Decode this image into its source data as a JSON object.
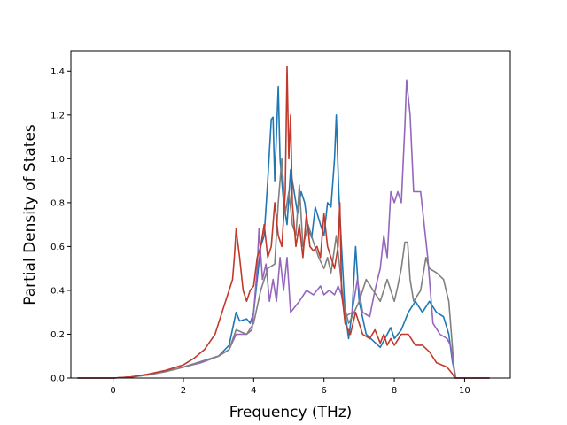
{
  "chart_data": {
    "type": "line",
    "title": "",
    "xlabel": "Frequency (THz)",
    "ylabel": "Partial Density of States",
    "xlim": [
      -1.2,
      11.3
    ],
    "ylim": [
      0.0,
      1.49
    ],
    "xticks": [
      0,
      2,
      4,
      6,
      8,
      10
    ],
    "yticks": [
      0.0,
      0.2,
      0.4,
      0.6,
      0.8,
      1.0,
      1.2,
      1.4
    ],
    "xtick_labels": [
      "0",
      "2",
      "4",
      "6",
      "8",
      "10"
    ],
    "ytick_labels": [
      "0.0",
      "0.2",
      "0.4",
      "0.6",
      "0.8",
      "1.0",
      "1.2",
      "1.4"
    ],
    "grid": false,
    "legend": "none",
    "series": [
      {
        "color": "#1f77b4",
        "points": [
          [
            -1.0,
            0
          ],
          [
            0,
            0
          ],
          [
            0.5,
            0.005
          ],
          [
            1.0,
            0.015
          ],
          [
            1.5,
            0.03
          ],
          [
            2.0,
            0.05
          ],
          [
            2.5,
            0.075
          ],
          [
            3.0,
            0.1
          ],
          [
            3.3,
            0.15
          ],
          [
            3.5,
            0.3
          ],
          [
            3.6,
            0.26
          ],
          [
            3.8,
            0.27
          ],
          [
            3.9,
            0.25
          ],
          [
            4.0,
            0.3
          ],
          [
            4.1,
            0.45
          ],
          [
            4.2,
            0.6
          ],
          [
            4.3,
            0.65
          ],
          [
            4.4,
            0.9
          ],
          [
            4.5,
            1.18
          ],
          [
            4.55,
            1.19
          ],
          [
            4.6,
            0.9
          ],
          [
            4.7,
            1.33
          ],
          [
            4.75,
            1.0
          ],
          [
            4.85,
            0.8
          ],
          [
            4.95,
            0.7
          ],
          [
            5.05,
            0.95
          ],
          [
            5.15,
            0.85
          ],
          [
            5.25,
            0.75
          ],
          [
            5.35,
            0.85
          ],
          [
            5.45,
            0.8
          ],
          [
            5.55,
            0.68
          ],
          [
            5.65,
            0.64
          ],
          [
            5.75,
            0.78
          ],
          [
            5.9,
            0.7
          ],
          [
            6.0,
            0.65
          ],
          [
            6.1,
            0.8
          ],
          [
            6.2,
            0.78
          ],
          [
            6.3,
            1.0
          ],
          [
            6.35,
            1.2
          ],
          [
            6.42,
            0.85
          ],
          [
            6.5,
            0.6
          ],
          [
            6.6,
            0.3
          ],
          [
            6.7,
            0.18
          ],
          [
            6.8,
            0.3
          ],
          [
            6.9,
            0.6
          ],
          [
            7.0,
            0.35
          ],
          [
            7.2,
            0.2
          ],
          [
            7.4,
            0.17
          ],
          [
            7.6,
            0.14
          ],
          [
            7.8,
            0.2
          ],
          [
            7.9,
            0.23
          ],
          [
            8.0,
            0.18
          ],
          [
            8.2,
            0.22
          ],
          [
            8.4,
            0.3
          ],
          [
            8.6,
            0.35
          ],
          [
            8.8,
            0.3
          ],
          [
            9.0,
            0.35
          ],
          [
            9.2,
            0.3
          ],
          [
            9.4,
            0.28
          ],
          [
            9.55,
            0.2
          ],
          [
            9.65,
            0.08
          ],
          [
            9.75,
            0.0
          ],
          [
            10.7,
            0.0
          ]
        ]
      },
      {
        "color": "#9467bd",
        "points": [
          [
            -1.0,
            0
          ],
          [
            0,
            0
          ],
          [
            0.5,
            0.005
          ],
          [
            1.0,
            0.015
          ],
          [
            1.5,
            0.03
          ],
          [
            2.0,
            0.05
          ],
          [
            2.5,
            0.07
          ],
          [
            3.0,
            0.1
          ],
          [
            3.3,
            0.13
          ],
          [
            3.5,
            0.2
          ],
          [
            3.8,
            0.2
          ],
          [
            3.95,
            0.22
          ],
          [
            4.0,
            0.3
          ],
          [
            4.1,
            0.5
          ],
          [
            4.15,
            0.68
          ],
          [
            4.25,
            0.45
          ],
          [
            4.35,
            0.52
          ],
          [
            4.45,
            0.35
          ],
          [
            4.55,
            0.45
          ],
          [
            4.65,
            0.35
          ],
          [
            4.75,
            0.55
          ],
          [
            4.85,
            0.4
          ],
          [
            4.95,
            0.55
          ],
          [
            5.05,
            0.3
          ],
          [
            5.15,
            0.32
          ],
          [
            5.3,
            0.35
          ],
          [
            5.5,
            0.4
          ],
          [
            5.7,
            0.38
          ],
          [
            5.9,
            0.42
          ],
          [
            6.0,
            0.38
          ],
          [
            6.15,
            0.4
          ],
          [
            6.3,
            0.38
          ],
          [
            6.4,
            0.42
          ],
          [
            6.5,
            0.38
          ],
          [
            6.6,
            0.28
          ],
          [
            6.8,
            0.3
          ],
          [
            6.95,
            0.45
          ],
          [
            7.1,
            0.3
          ],
          [
            7.3,
            0.28
          ],
          [
            7.45,
            0.4
          ],
          [
            7.6,
            0.5
          ],
          [
            7.7,
            0.65
          ],
          [
            7.8,
            0.55
          ],
          [
            7.9,
            0.85
          ],
          [
            8.0,
            0.8
          ],
          [
            8.1,
            0.85
          ],
          [
            8.2,
            0.8
          ],
          [
            8.3,
            1.15
          ],
          [
            8.35,
            1.36
          ],
          [
            8.45,
            1.2
          ],
          [
            8.55,
            0.85
          ],
          [
            8.75,
            0.85
          ],
          [
            8.85,
            0.7
          ],
          [
            8.95,
            0.55
          ],
          [
            9.1,
            0.25
          ],
          [
            9.3,
            0.2
          ],
          [
            9.5,
            0.18
          ],
          [
            9.6,
            0.15
          ],
          [
            9.7,
            0.05
          ],
          [
            9.75,
            0.0
          ],
          [
            10.7,
            0.0
          ]
        ]
      },
      {
        "color": "#808080",
        "points": [
          [
            -1.0,
            0
          ],
          [
            0,
            0
          ],
          [
            0.5,
            0.005
          ],
          [
            1.0,
            0.015
          ],
          [
            1.5,
            0.03
          ],
          [
            2.0,
            0.05
          ],
          [
            2.5,
            0.075
          ],
          [
            3.0,
            0.1
          ],
          [
            3.3,
            0.13
          ],
          [
            3.5,
            0.22
          ],
          [
            3.8,
            0.2
          ],
          [
            4.0,
            0.25
          ],
          [
            4.2,
            0.4
          ],
          [
            4.4,
            0.5
          ],
          [
            4.6,
            0.52
          ],
          [
            4.7,
            0.8
          ],
          [
            4.75,
            0.9
          ],
          [
            4.8,
            1.0
          ],
          [
            4.9,
            0.75
          ],
          [
            5.0,
            0.85
          ],
          [
            5.1,
            0.7
          ],
          [
            5.2,
            0.65
          ],
          [
            5.3,
            0.88
          ],
          [
            5.4,
            0.6
          ],
          [
            5.55,
            0.7
          ],
          [
            5.7,
            0.62
          ],
          [
            5.85,
            0.55
          ],
          [
            6.0,
            0.5
          ],
          [
            6.1,
            0.55
          ],
          [
            6.2,
            0.48
          ],
          [
            6.35,
            0.65
          ],
          [
            6.45,
            0.5
          ],
          [
            6.55,
            0.35
          ],
          [
            6.7,
            0.25
          ],
          [
            6.8,
            0.28
          ],
          [
            7.0,
            0.35
          ],
          [
            7.2,
            0.45
          ],
          [
            7.4,
            0.4
          ],
          [
            7.6,
            0.35
          ],
          [
            7.8,
            0.45
          ],
          [
            8.0,
            0.35
          ],
          [
            8.1,
            0.42
          ],
          [
            8.2,
            0.5
          ],
          [
            8.3,
            0.62
          ],
          [
            8.38,
            0.62
          ],
          [
            8.45,
            0.45
          ],
          [
            8.55,
            0.35
          ],
          [
            8.75,
            0.4
          ],
          [
            8.9,
            0.55
          ],
          [
            9.0,
            0.5
          ],
          [
            9.2,
            0.48
          ],
          [
            9.4,
            0.45
          ],
          [
            9.55,
            0.35
          ],
          [
            9.65,
            0.15
          ],
          [
            9.72,
            0.0
          ],
          [
            10.7,
            0.0
          ]
        ]
      },
      {
        "color": "#c0392b",
        "points": [
          [
            -1.0,
            0
          ],
          [
            0,
            0
          ],
          [
            0.5,
            0.005
          ],
          [
            1.0,
            0.018
          ],
          [
            1.5,
            0.035
          ],
          [
            2.0,
            0.06
          ],
          [
            2.3,
            0.09
          ],
          [
            2.6,
            0.13
          ],
          [
            2.9,
            0.2
          ],
          [
            3.1,
            0.3
          ],
          [
            3.3,
            0.4
          ],
          [
            3.4,
            0.45
          ],
          [
            3.45,
            0.55
          ],
          [
            3.5,
            0.68
          ],
          [
            3.6,
            0.55
          ],
          [
            3.7,
            0.4
          ],
          [
            3.8,
            0.35
          ],
          [
            3.9,
            0.4
          ],
          [
            4.0,
            0.42
          ],
          [
            4.1,
            0.55
          ],
          [
            4.2,
            0.6
          ],
          [
            4.3,
            0.7
          ],
          [
            4.4,
            0.55
          ],
          [
            4.5,
            0.6
          ],
          [
            4.6,
            0.8
          ],
          [
            4.7,
            0.65
          ],
          [
            4.8,
            0.6
          ],
          [
            4.9,
            0.85
          ],
          [
            4.95,
            1.42
          ],
          [
            5.0,
            1.0
          ],
          [
            5.05,
            1.2
          ],
          [
            5.1,
            0.8
          ],
          [
            5.2,
            0.6
          ],
          [
            5.3,
            0.7
          ],
          [
            5.4,
            0.55
          ],
          [
            5.5,
            0.75
          ],
          [
            5.6,
            0.6
          ],
          [
            5.7,
            0.58
          ],
          [
            5.8,
            0.6
          ],
          [
            5.9,
            0.55
          ],
          [
            6.0,
            0.75
          ],
          [
            6.1,
            0.6
          ],
          [
            6.2,
            0.55
          ],
          [
            6.3,
            0.5
          ],
          [
            6.4,
            0.6
          ],
          [
            6.45,
            0.8
          ],
          [
            6.5,
            0.4
          ],
          [
            6.6,
            0.25
          ],
          [
            6.75,
            0.2
          ],
          [
            6.9,
            0.3
          ],
          [
            7.1,
            0.2
          ],
          [
            7.3,
            0.18
          ],
          [
            7.45,
            0.22
          ],
          [
            7.6,
            0.16
          ],
          [
            7.7,
            0.2
          ],
          [
            7.8,
            0.15
          ],
          [
            7.9,
            0.18
          ],
          [
            8.0,
            0.15
          ],
          [
            8.2,
            0.2
          ],
          [
            8.4,
            0.2
          ],
          [
            8.6,
            0.15
          ],
          [
            8.8,
            0.15
          ],
          [
            9.0,
            0.12
          ],
          [
            9.2,
            0.07
          ],
          [
            9.5,
            0.05
          ],
          [
            9.65,
            0.02
          ],
          [
            9.72,
            0.0
          ],
          [
            10.7,
            0.0
          ]
        ]
      }
    ]
  }
}
